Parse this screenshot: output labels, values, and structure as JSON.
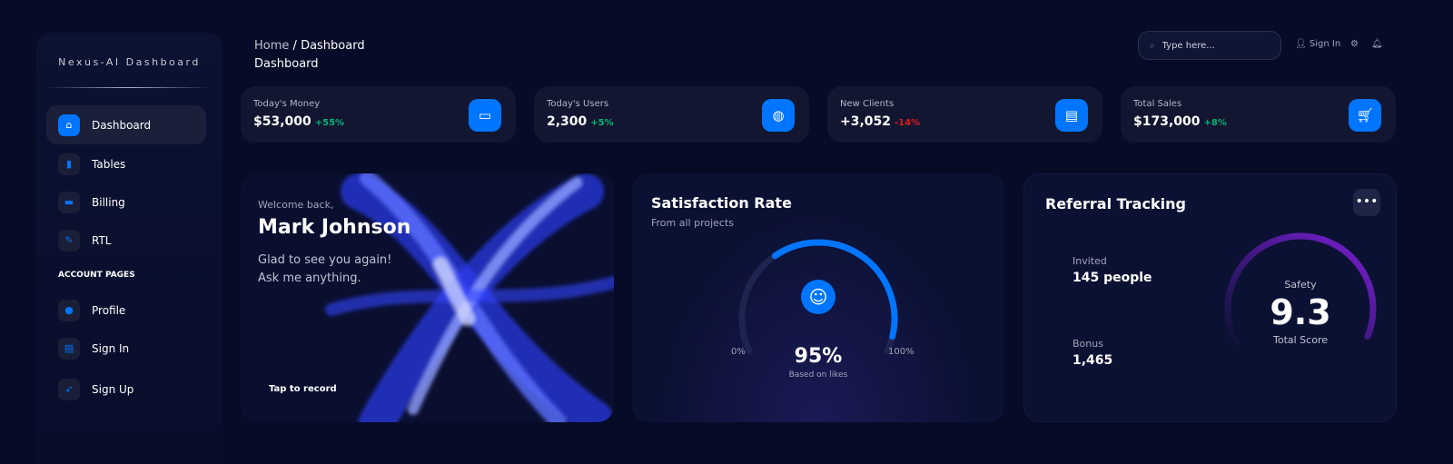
{
  "sidebar": {
    "brand": "Nexus-AI Dashboard",
    "items": [
      {
        "label": "Dashboard",
        "icon": "home-icon",
        "active": true
      },
      {
        "label": "Tables",
        "icon": "bar-chart-icon"
      },
      {
        "label": "Billing",
        "icon": "credit-card-icon"
      },
      {
        "label": "RTL",
        "icon": "wrench-icon"
      }
    ],
    "section": "ACCOUNT PAGES",
    "account": [
      {
        "label": "Profile",
        "icon": "user-icon"
      },
      {
        "label": "Sign In",
        "icon": "document-icon"
      },
      {
        "label": "Sign Up",
        "icon": "rocket-icon"
      }
    ]
  },
  "header": {
    "crumb_home": "Home",
    "crumb_sep": "/",
    "crumb_current": "Dashboard",
    "title": "Dashboard",
    "search_placeholder": "Type here...",
    "sign_in": "Sign In"
  },
  "stats": [
    {
      "label": "Today's Money",
      "value": "$53,000",
      "change": "+55%",
      "positive": true,
      "icon": "wallet-icon"
    },
    {
      "label": "Today's Users",
      "value": "2,300",
      "change": "+5%",
      "positive": true,
      "icon": "globe-icon"
    },
    {
      "label": "New Clients",
      "value": "+3,052",
      "change": "-14%",
      "positive": false,
      "icon": "document-icon"
    },
    {
      "label": "Total Sales",
      "value": "$173,000",
      "change": "+8%",
      "positive": true,
      "icon": "cart-icon"
    }
  ],
  "welcome": {
    "greeting": "Welcome back,",
    "name": "Mark Johnson",
    "line1": "Glad to see you again!",
    "line2": "Ask me anything.",
    "cta": "Tap to record"
  },
  "satisfaction": {
    "title": "Satisfaction Rate",
    "subtitle": "From all projects",
    "min": "0%",
    "max": "100%",
    "value": "95%",
    "percent": 95,
    "caption": "Based on likes"
  },
  "referral": {
    "title": "Referral Tracking",
    "invited_label": "Invited",
    "invited_value": "145 people",
    "bonus_label": "Bonus",
    "bonus_value": "1,465",
    "gauge_label": "Safety",
    "score": "9.3",
    "score_caption": "Total Score",
    "score_max": 10
  },
  "colors": {
    "accent": "#0075ff",
    "positive": "#01b574",
    "negative": "#e31a1a",
    "purple": "#7c1fd6"
  }
}
